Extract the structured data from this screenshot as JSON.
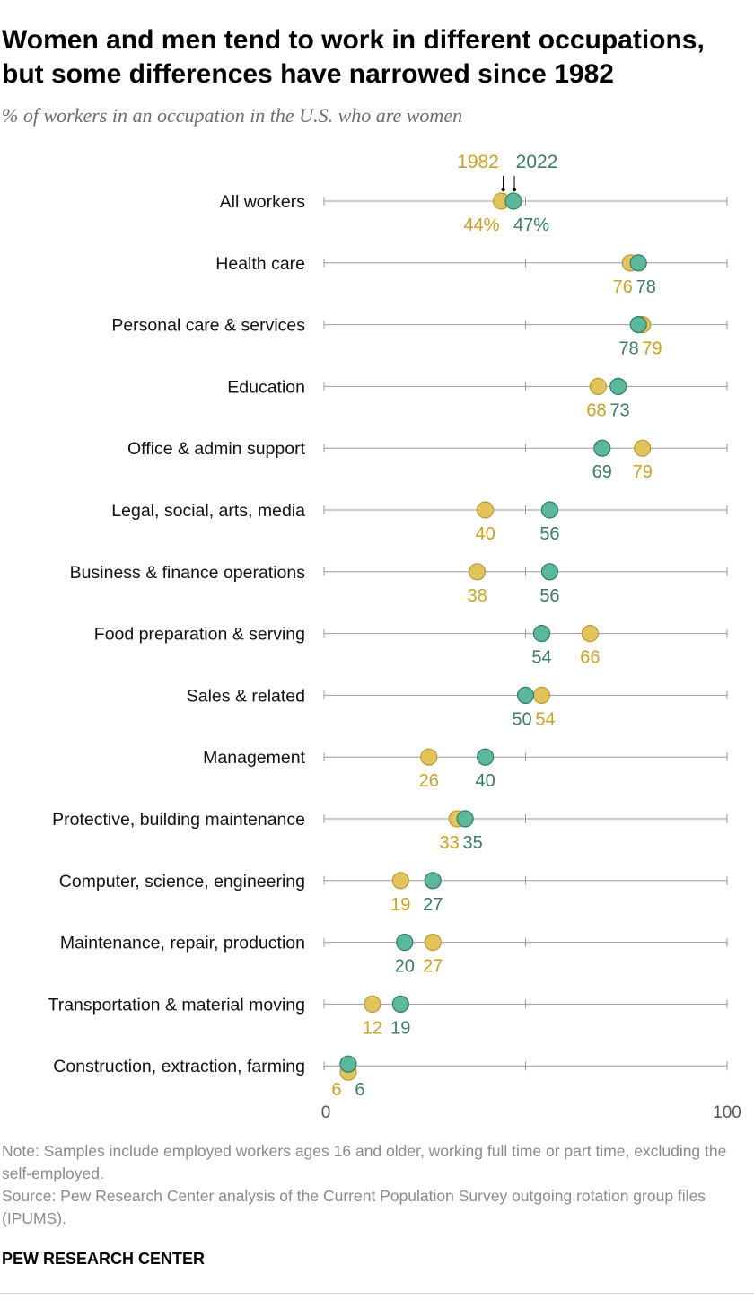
{
  "title": "Women and men tend to work in different occupations, but some differences have narrowed since 1982",
  "subtitle": "% of workers in an occupation in the U.S. who are women",
  "note": "Note: Samples include employed workers ages 16 and older, working full time or part time, excluding the self-employed.",
  "source": "Source: Pew Research Center analysis of the Current Population Survey outgoing rotation group files (IPUMS).",
  "brand": "PEW RESEARCH CENTER",
  "colors": {
    "y1982": "#e3c35c",
    "y2022": "#5cb89d",
    "label1982": "#c9a227",
    "label2022": "#3c7a66",
    "axis": "#9a9a9a"
  },
  "chart_data": {
    "type": "scatter",
    "subtype": "dot-plot",
    "xlim": [
      0,
      100
    ],
    "x_tick_labels": [
      "0",
      "100"
    ],
    "gridlines": [
      0,
      50,
      100
    ],
    "series": [
      {
        "name": "1982",
        "color": "#e3c35c"
      },
      {
        "name": "2022",
        "color": "#5cb89d"
      }
    ],
    "categories": [
      {
        "label": "All workers",
        "v1982": 44,
        "v2022": 47,
        "l1982": "44%",
        "l2022": "47%"
      },
      {
        "label": "Health care",
        "v1982": 76,
        "v2022": 78,
        "l1982": "76",
        "l2022": "78"
      },
      {
        "label": "Personal care & services",
        "v1982": 79,
        "v2022": 78,
        "l1982": "79",
        "l2022": "78"
      },
      {
        "label": "Education",
        "v1982": 68,
        "v2022": 73,
        "l1982": "68",
        "l2022": "73"
      },
      {
        "label": "Office & admin support",
        "v1982": 79,
        "v2022": 69,
        "l1982": "79",
        "l2022": "69"
      },
      {
        "label": "Legal, social, arts, media",
        "v1982": 40,
        "v2022": 56,
        "l1982": "40",
        "l2022": "56"
      },
      {
        "label": "Business & finance operations",
        "v1982": 38,
        "v2022": 56,
        "l1982": "38",
        "l2022": "56"
      },
      {
        "label": "Food preparation & serving",
        "v1982": 66,
        "v2022": 54,
        "l1982": "66",
        "l2022": "54"
      },
      {
        "label": "Sales & related",
        "v1982": 54,
        "v2022": 50,
        "l1982": "54",
        "l2022": "50"
      },
      {
        "label": "Management",
        "v1982": 26,
        "v2022": 40,
        "l1982": "26",
        "l2022": "40"
      },
      {
        "label": "Protective, building maintenance",
        "v1982": 33,
        "v2022": 35,
        "l1982": "33",
        "l2022": "35"
      },
      {
        "label": "Computer, science, engineering",
        "v1982": 19,
        "v2022": 27,
        "l1982": "19",
        "l2022": "27"
      },
      {
        "label": "Maintenance, repair, production",
        "v1982": 27,
        "v2022": 20,
        "l1982": "27",
        "l2022": "20"
      },
      {
        "label": "Transportation & material moving",
        "v1982": 12,
        "v2022": 19,
        "l1982": "12",
        "l2022": "19"
      },
      {
        "label": "Construction, extraction, farming",
        "v1982": 6,
        "v2022": 6,
        "l1982": "6",
        "l2022": "6"
      }
    ]
  }
}
